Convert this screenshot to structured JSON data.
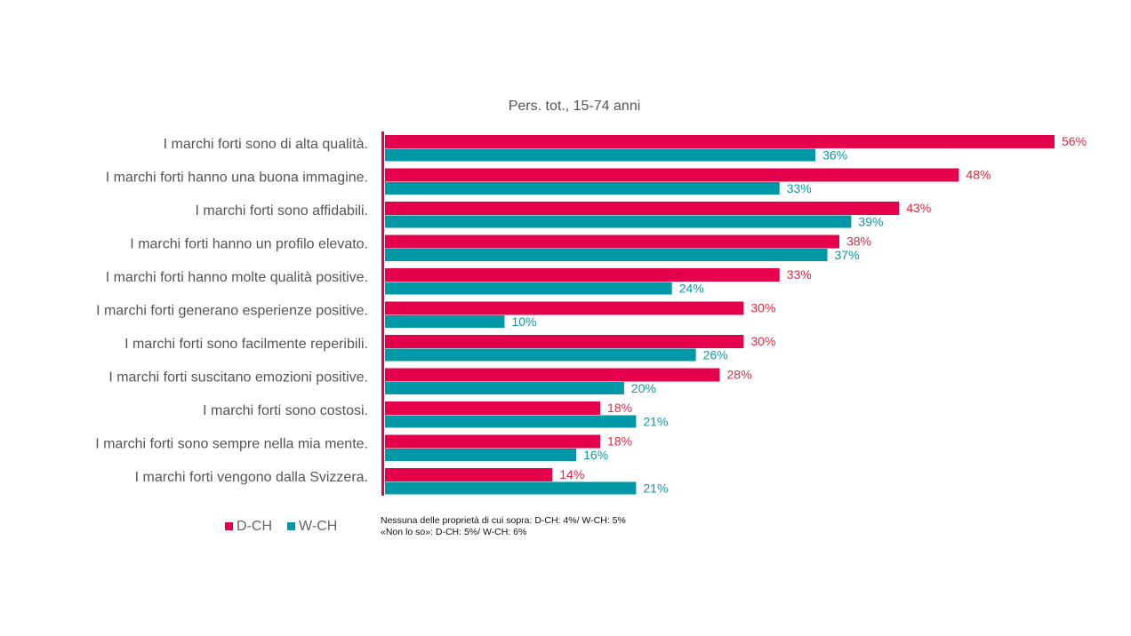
{
  "chart_data": {
    "type": "bar",
    "orientation": "horizontal",
    "title": "Pers. tot., 15-74 anni",
    "categories": [
      "I marchi forti sono di alta qualità.",
      "I marchi forti hanno una buona immagine.",
      "I marchi forti sono affidabili.",
      "I marchi forti hanno un profilo elevato.",
      "I marchi forti hanno molte qualità positive.",
      "I marchi forti generano esperienze positive.",
      "I marchi forti sono facilmente reperibili.",
      "I marchi forti suscitano emozioni positive.",
      "I marchi forti sono costosi.",
      "I marchi forti sono sempre nella mia mente.",
      "I marchi forti vengono dalla Svizzera."
    ],
    "series": [
      {
        "name": "D-CH",
        "color": "#e4004b",
        "label_color": "#e8263f",
        "values": [
          56,
          48,
          43,
          38,
          33,
          30,
          30,
          28,
          18,
          18,
          14
        ]
      },
      {
        "name": "W-CH",
        "color": "#0097a7",
        "label_color": "#0a9aa8",
        "values": [
          36,
          33,
          39,
          37,
          24,
          10,
          26,
          20,
          21,
          16,
          21
        ]
      }
    ],
    "value_suffix": "%",
    "xlim": [
      0,
      56
    ],
    "grid": false,
    "legend": "bottom-left",
    "notes": [
      "Nessuna delle proprietà di cui sopra: D-CH: 4%/ W-CH: 5%",
      "«Non lo so»: D-CH: 5%/ W-CH: 6%"
    ]
  }
}
